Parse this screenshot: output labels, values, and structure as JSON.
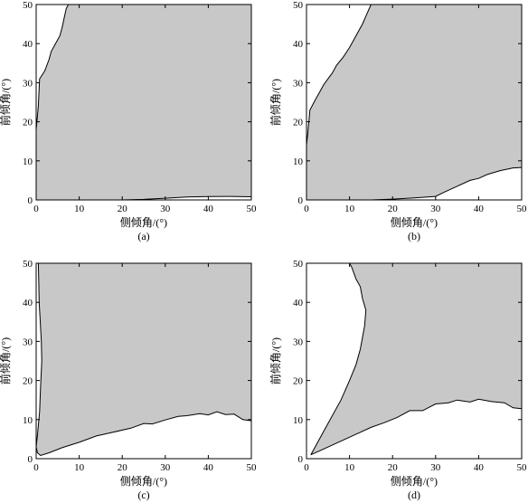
{
  "chart_data": [
    {
      "type": "area",
      "panel_label": "(a)",
      "xlabel": "侧倾角/(°)",
      "ylabel": "前倾角/(°)",
      "xlim": [
        0,
        50
      ],
      "ylim": [
        0,
        50
      ],
      "xticks": [
        0,
        10,
        20,
        30,
        40,
        50
      ],
      "yticks": [
        0,
        10,
        20,
        30,
        40,
        50
      ],
      "fill_color": "#c8c8c8",
      "upper_left_boundary": [
        [
          0,
          18
        ],
        [
          0.5,
          24
        ],
        [
          0.8,
          31
        ],
        [
          2,
          33
        ],
        [
          3,
          36
        ],
        [
          3.5,
          38
        ],
        [
          4.5,
          40
        ],
        [
          5,
          41
        ],
        [
          5.5,
          42
        ],
        [
          6,
          44
        ],
        [
          6.5,
          46.5
        ],
        [
          7,
          49
        ],
        [
          7.5,
          50
        ]
      ],
      "lower_boundary": [
        [
          0,
          0
        ],
        [
          20,
          0
        ],
        [
          25,
          0.15
        ],
        [
          30,
          0.45
        ],
        [
          35,
          0.75
        ],
        [
          40,
          0.85
        ],
        [
          45,
          0.9
        ],
        [
          50,
          0.8
        ]
      ]
    },
    {
      "type": "area",
      "panel_label": "(b)",
      "xlabel": "侧倾角/(°)",
      "ylabel": "前倾角/(°)",
      "xlim": [
        0,
        50
      ],
      "ylim": [
        0,
        50
      ],
      "xticks": [
        0,
        10,
        20,
        30,
        40,
        50
      ],
      "yticks": [
        0,
        10,
        20,
        30,
        40,
        50
      ],
      "fill_color": "#c8c8c8",
      "upper_left_boundary": [
        [
          0,
          14
        ],
        [
          0.3,
          17
        ],
        [
          0.8,
          23
        ],
        [
          2,
          25.5
        ],
        [
          3,
          27.5
        ],
        [
          4,
          29.5
        ],
        [
          5,
          31
        ],
        [
          6,
          32.5
        ],
        [
          7,
          34.5
        ],
        [
          8.5,
          36.5
        ],
        [
          10,
          39
        ],
        [
          11,
          41
        ],
        [
          12,
          43
        ],
        [
          13,
          45
        ],
        [
          14,
          47.5
        ],
        [
          15,
          50
        ]
      ],
      "lower_boundary": [
        [
          0,
          0
        ],
        [
          15,
          0
        ],
        [
          20,
          0.2
        ],
        [
          25,
          0.5
        ],
        [
          30,
          0.9
        ],
        [
          32,
          2
        ],
        [
          35,
          3.5
        ],
        [
          38,
          5
        ],
        [
          40,
          5.5
        ],
        [
          42,
          6.5
        ],
        [
          45,
          7.5
        ],
        [
          48,
          8.2
        ],
        [
          50,
          8.3
        ]
      ]
    },
    {
      "type": "area",
      "panel_label": "(c)",
      "xlabel": "侧倾角/(°)",
      "ylabel": "前倾角/(°)",
      "xlim": [
        0,
        50
      ],
      "ylim": [
        0,
        50
      ],
      "xticks": [
        0,
        10,
        20,
        30,
        40,
        50
      ],
      "yticks": [
        0,
        10,
        20,
        30,
        40,
        50
      ],
      "fill_color": "#c8c8c8",
      "upper_left_boundary": [
        [
          0,
          3
        ],
        [
          0.3,
          6
        ],
        [
          0.8,
          12
        ],
        [
          1,
          18
        ],
        [
          1.3,
          25
        ],
        [
          1.2,
          30
        ],
        [
          0.9,
          36
        ],
        [
          0.7,
          40
        ],
        [
          0.6,
          45
        ],
        [
          0.5,
          50
        ]
      ],
      "lower_boundary": [
        [
          0,
          3
        ],
        [
          0.3,
          1.5
        ],
        [
          1,
          0.8
        ],
        [
          3,
          1.5
        ],
        [
          6,
          2.8
        ],
        [
          10,
          4.2
        ],
        [
          14,
          5.8
        ],
        [
          18,
          6.8
        ],
        [
          22,
          7.8
        ],
        [
          25,
          9
        ],
        [
          27,
          8.9
        ],
        [
          30,
          9.9
        ],
        [
          33,
          10.8
        ],
        [
          35,
          11
        ],
        [
          38,
          11.5
        ],
        [
          40,
          11.2
        ],
        [
          42,
          12
        ],
        [
          44,
          11.3
        ],
        [
          46,
          11.4
        ],
        [
          48,
          10
        ],
        [
          50,
          9.7
        ]
      ]
    },
    {
      "type": "area",
      "panel_label": "(d)",
      "xlabel": "侧倾角/(°)",
      "ylabel": "前倾角/(°)",
      "xlim": [
        0,
        50
      ],
      "ylim": [
        0,
        50
      ],
      "xticks": [
        0,
        10,
        20,
        30,
        40,
        50
      ],
      "yticks": [
        0,
        10,
        20,
        30,
        40,
        50
      ],
      "fill_color": "#c8c8c8",
      "upper_left_boundary": [
        [
          1,
          1
        ],
        [
          4,
          7
        ],
        [
          8,
          15
        ],
        [
          10,
          20
        ],
        [
          11.5,
          24
        ],
        [
          12.5,
          28
        ],
        [
          13,
          31
        ],
        [
          13.5,
          34
        ],
        [
          13.8,
          38
        ],
        [
          13,
          41
        ],
        [
          12.5,
          44
        ],
        [
          11.5,
          46
        ],
        [
          11,
          47.5
        ],
        [
          10.5,
          49
        ],
        [
          10,
          50
        ]
      ],
      "lower_boundary": [
        [
          1,
          1
        ],
        [
          3,
          2
        ],
        [
          6,
          3.5
        ],
        [
          9,
          5
        ],
        [
          12,
          6.5
        ],
        [
          15,
          8
        ],
        [
          18,
          9.2
        ],
        [
          21,
          10.5
        ],
        [
          24,
          12.3
        ],
        [
          27,
          12.3
        ],
        [
          30,
          14
        ],
        [
          33,
          14.3
        ],
        [
          35,
          15
        ],
        [
          38,
          14.5
        ],
        [
          40,
          15.2
        ],
        [
          43,
          14.6
        ],
        [
          46,
          14.3
        ],
        [
          48,
          13
        ],
        [
          50,
          12.8
        ]
      ]
    }
  ]
}
